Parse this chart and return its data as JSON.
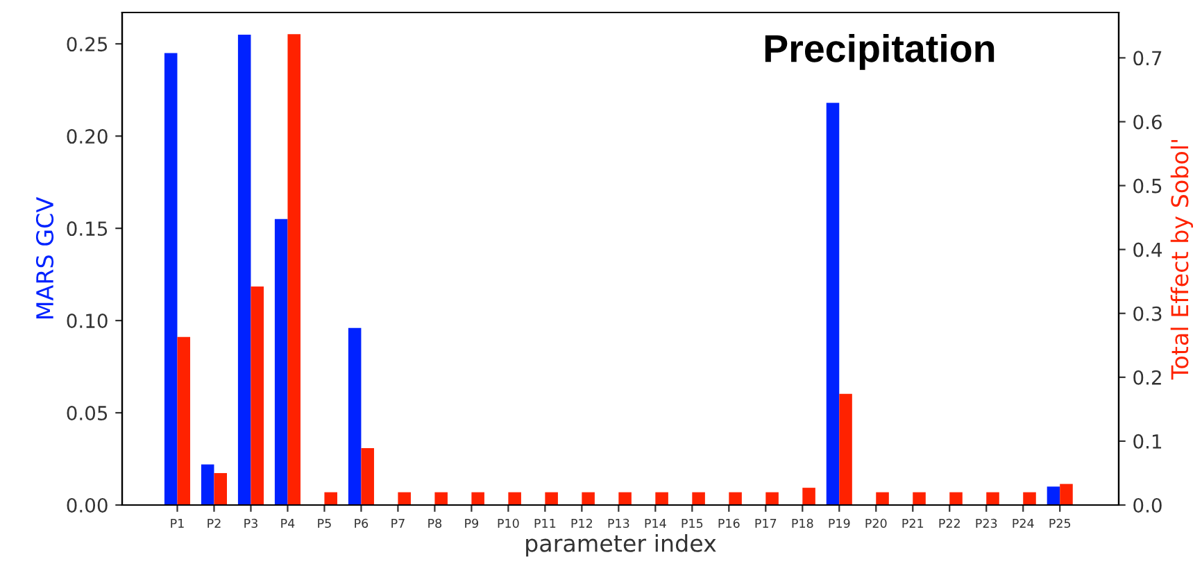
{
  "chart_data": {
    "type": "bar",
    "categories": [
      "P1",
      "P2",
      "P3",
      "P4",
      "P5",
      "P6",
      "P7",
      "P8",
      "P9",
      "P10",
      "P11",
      "P12",
      "P13",
      "P14",
      "P15",
      "P16",
      "P17",
      "P18",
      "P19",
      "P20",
      "P21",
      "P22",
      "P23",
      "P24",
      "P25"
    ],
    "series": [
      {
        "color": "#0022ff",
        "values": [
          0.245,
          0.022,
          0.255,
          0.155,
          0,
          0.096,
          0,
          0,
          0,
          0,
          0,
          0,
          0,
          0,
          0,
          0,
          0,
          0,
          0.218,
          0,
          0,
          0,
          0,
          0,
          0.01
        ]
      },
      {
        "color": "#ff2200",
        "axis": "y2",
        "values": [
          0.263,
          0.05,
          0.342,
          0.737,
          0.02,
          0.089,
          0.02,
          0.02,
          0.02,
          0.02,
          0.02,
          0.02,
          0.02,
          0.02,
          0.02,
          0.02,
          0.02,
          0.027,
          0.174,
          0.02,
          0.02,
          0.02,
          0.02,
          0.02,
          0.033
        ]
      }
    ],
    "xlabel": "parameter index",
    "ylabel": "MARS GCV",
    "y2label": "Total Effect by Sobol'",
    "ylim": [
      0,
      0.267
    ],
    "yticks": [
      {
        "value": 0,
        "label": "0.00"
      },
      {
        "value": 0.05,
        "label": "0.05"
      },
      {
        "value": 0.1,
        "label": "0.10"
      },
      {
        "value": 0.15,
        "label": "0.15"
      },
      {
        "value": 0.2,
        "label": "0.20"
      },
      {
        "value": 0.25,
        "label": "0.25"
      }
    ],
    "y2lim": [
      0,
      0.771
    ],
    "y2ticks": [
      {
        "value": 0,
        "label": "0.0"
      },
      {
        "value": 0.1,
        "label": "0.1"
      },
      {
        "value": 0.2,
        "label": "0.2"
      },
      {
        "value": 0.3,
        "label": "0.3"
      },
      {
        "value": 0.4,
        "label": "0.4"
      },
      {
        "value": 0.5,
        "label": "0.5"
      },
      {
        "value": 0.6,
        "label": "0.6"
      },
      {
        "value": 0.7,
        "label": "0.7"
      }
    ],
    "annotations": [
      "Precipitation"
    ],
    "grid": false,
    "legend": false
  }
}
